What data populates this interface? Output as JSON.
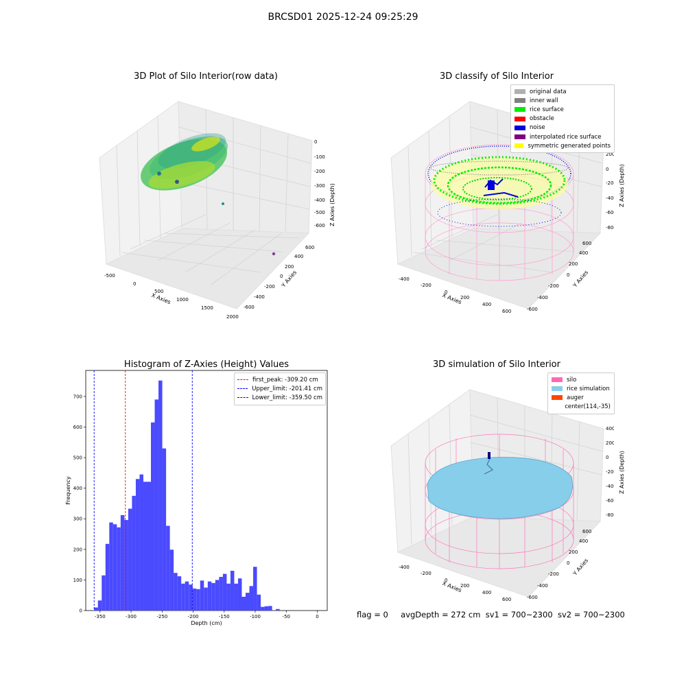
{
  "figure": {
    "title": "BRCSD01 2025-12-24 09:25:29",
    "footer": {
      "flag": "flag = 0",
      "avg_depth": "avgDepth = 272 cm",
      "sv1": "sv1 = 700~2300",
      "sv2": "sv2 = 700~2300"
    }
  },
  "chart_data": [
    {
      "type": "scatter",
      "title": "3D Plot of Silo Interior(row data)",
      "xlabel": "X Axies",
      "ylabel": "Y Axies",
      "zlabel": "Z Axies (Depth)",
      "x_ticks": [
        "-500",
        "0",
        "500",
        "1000",
        "1500",
        "2000"
      ],
      "y_ticks": [
        "-600",
        "-400",
        "-200",
        "0",
        "200",
        "400",
        "600"
      ],
      "z_ticks": [
        "0",
        "-100",
        "-200",
        "-300",
        "-400",
        "-500",
        "-600"
      ],
      "colormap": "viridis",
      "grid": true
    },
    {
      "type": "scatter",
      "title": "3D classify of Silo Interior",
      "xlabel": "X Axies",
      "ylabel": "Y Axies",
      "zlabel": "Z Axies (Depth)",
      "x_ticks": [
        "-400",
        "-200",
        "0",
        "200",
        "400",
        "600"
      ],
      "y_ticks": [
        "-600",
        "-400",
        "-200",
        "0",
        "200",
        "400",
        "600"
      ],
      "z_ticks": [
        "200",
        "0",
        "-200",
        "-400",
        "-600",
        "-800"
      ],
      "legend_position": "top-right",
      "legend": [
        {
          "label": "original data",
          "color": "#b0b0b0"
        },
        {
          "label": "inner wall",
          "color": "#808080"
        },
        {
          "label": "rice surface",
          "color": "#00ee00"
        },
        {
          "label": "obstacle",
          "color": "#ff0000"
        },
        {
          "label": "noise",
          "color": "#0000dd"
        },
        {
          "label": "interpolated rice surface",
          "color": "#800080"
        },
        {
          "label": "symmetric generated points",
          "color": "#ffff00"
        }
      ],
      "grid": true
    },
    {
      "type": "bar",
      "title": "Histogram of Z-Axies (Height) Values",
      "xlabel": "Depth (cm)",
      "ylabel": "Frequency",
      "xlim": [
        -373,
        16
      ],
      "ylim": [
        0,
        785
      ],
      "x_ticks": [
        -350,
        -300,
        -250,
        -200,
        -150,
        -100,
        -50,
        0
      ],
      "y_ticks": [
        0,
        100,
        200,
        300,
        400,
        500,
        600,
        700
      ],
      "bin_start": -359.5,
      "bin_width": 6.1,
      "values": [
        10,
        33,
        115,
        218,
        288,
        282,
        272,
        312,
        296,
        333,
        375,
        430,
        445,
        421,
        421,
        615,
        690,
        752,
        530,
        277,
        199,
        123,
        112,
        88,
        95,
        85,
        72,
        70,
        98,
        75,
        95,
        90,
        100,
        110,
        120,
        88,
        130,
        88,
        105,
        45,
        58,
        80,
        143,
        52,
        12,
        14,
        15,
        0,
        5
      ],
      "bar_color": "#4a4aff",
      "vlines": [
        {
          "label": "first_peak: -309.20 cm",
          "x": -309.2,
          "color": "#ff0000"
        },
        {
          "label": "Upper_limit: -201.41 cm",
          "x": -201.41,
          "color": "#0000ff"
        },
        {
          "label": "Lower_limit: -359.50 cm",
          "x": -359.5,
          "color": "#0000ff"
        }
      ],
      "legend_position": "top-right",
      "grid": false
    },
    {
      "type": "scatter",
      "title": "3D simulation of Silo Interior",
      "xlabel": "X Axies",
      "ylabel": "Y Axies",
      "zlabel": "Z Axies (Depth)",
      "x_ticks": [
        "-400",
        "-200",
        "0",
        "200",
        "400",
        "600"
      ],
      "y_ticks": [
        "-600",
        "-400",
        "-200",
        "0",
        "200",
        "400",
        "600"
      ],
      "z_ticks": [
        "400",
        "200",
        "0",
        "-200",
        "-400",
        "-600",
        "-800"
      ],
      "legend_position": "top-right",
      "legend": [
        {
          "label": "silo",
          "color": "#ff69b4"
        },
        {
          "label": "rice simulation",
          "color": "#87ceeb"
        },
        {
          "label": "auger",
          "color": "#ff4500"
        },
        {
          "label": "center(114,-35)",
          "color": ""
        }
      ],
      "grid": true
    }
  ]
}
